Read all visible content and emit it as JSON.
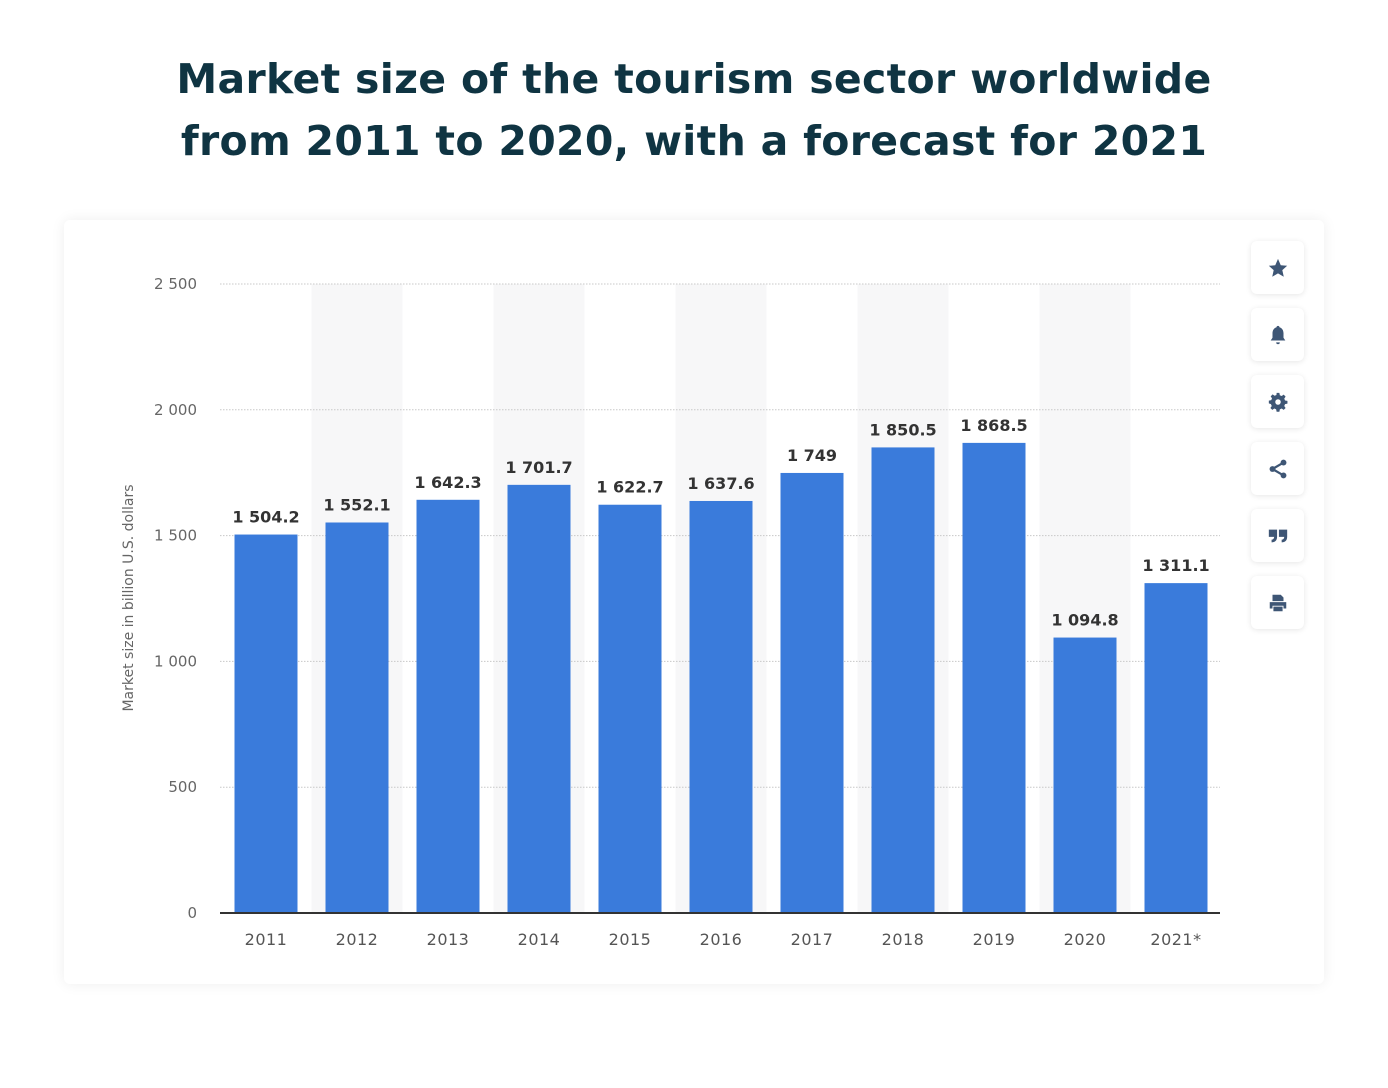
{
  "title_lines": [
    "Market size of the tourism sector worldwide",
    "from 2011 to 2020, with a forecast for 2021"
  ],
  "tools": [
    "star-icon",
    "bell-icon",
    "gear-icon",
    "share-icon",
    "quote-icon",
    "print-icon"
  ],
  "chart_data": {
    "type": "bar",
    "title": "Market size of the tourism sector worldwide from 2011 to 2020, with a forecast for 2021",
    "categories": [
      "2011",
      "2012",
      "2013",
      "2014",
      "2015",
      "2016",
      "2017",
      "2018",
      "2019",
      "2020",
      "2021*"
    ],
    "values": [
      1504.2,
      1552.1,
      1642.3,
      1701.7,
      1622.7,
      1637.6,
      1749,
      1850.5,
      1868.5,
      1094.8,
      1311.1
    ],
    "data_labels": [
      "1 504.2",
      "1 552.1",
      "1 642.3",
      "1 701.7",
      "1 622.7",
      "1 637.6",
      "1 749",
      "1 850.5",
      "1 868.5",
      "1 094.8",
      "1 311.1"
    ],
    "ylabel": "Market size in billion U.S. dollars",
    "xlabel": "",
    "ylim": [
      0,
      2500
    ],
    "yticks": [
      0,
      500,
      1000,
      1500,
      2000,
      2500
    ],
    "ytick_labels": [
      "0",
      "500",
      "1 000",
      "1 500",
      "2 000",
      "2 500"
    ],
    "grid": true,
    "bar_color": "#3a7bdb"
  }
}
